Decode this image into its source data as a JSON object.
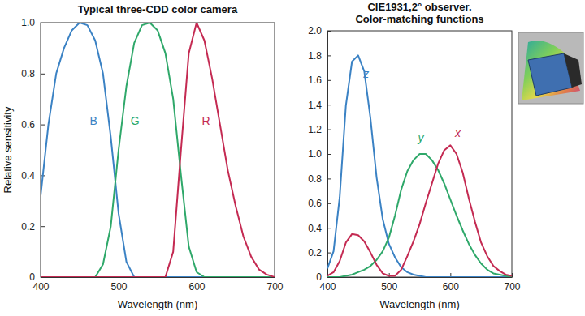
{
  "chart_data": [
    {
      "type": "line",
      "title": "Typical three-CDD color camera",
      "xlabel": "Wavelength (nm)",
      "ylabel": "Relative sensitivity",
      "x": [
        400,
        410,
        420,
        430,
        440,
        450,
        460,
        470,
        480,
        490,
        500,
        510,
        520,
        530,
        540,
        550,
        560,
        570,
        580,
        590,
        600,
        610,
        620,
        630,
        640,
        650,
        660,
        670,
        680,
        690,
        700
      ],
      "series": [
        {
          "name": "B",
          "color": "#3b82c4",
          "values": [
            0.32,
            0.6,
            0.8,
            0.9,
            0.97,
            1.0,
            0.99,
            0.93,
            0.8,
            0.55,
            0.25,
            0.06,
            0,
            0,
            0,
            0,
            0,
            0,
            0,
            0,
            0,
            0,
            0,
            0,
            0,
            0,
            0,
            0,
            0,
            0,
            0
          ]
        },
        {
          "name": "G",
          "color": "#2fa86a",
          "values": [
            0,
            0,
            0,
            0,
            0,
            0,
            0,
            0,
            0.05,
            0.2,
            0.5,
            0.75,
            0.92,
            0.99,
            1.0,
            0.97,
            0.88,
            0.7,
            0.4,
            0.12,
            0.02,
            0,
            0,
            0,
            0,
            0,
            0,
            0,
            0,
            0,
            0
          ]
        },
        {
          "name": "R",
          "color": "#c42a52",
          "values": [
            0,
            0,
            0,
            0,
            0,
            0,
            0,
            0,
            0,
            0,
            0,
            0,
            0,
            0,
            0,
            0,
            0,
            0.1,
            0.5,
            0.88,
            1.0,
            0.93,
            0.78,
            0.6,
            0.42,
            0.28,
            0.16,
            0.08,
            0.03,
            0.01,
            0
          ]
        }
      ],
      "xlim": [
        400,
        700
      ],
      "ylim": [
        0,
        1
      ],
      "xticks": [
        400,
        500,
        600,
        700
      ],
      "yticks": [
        0,
        0.2,
        0.4,
        0.6,
        0.8,
        {
          "value": 1,
          "label": "1.0"
        }
      ],
      "grid": false
    },
    {
      "type": "line",
      "title": [
        "CIE1931,2° observer.",
        "Color-matching functions"
      ],
      "xlabel": "Wavelength (nm)",
      "x": [
        400,
        410,
        420,
        430,
        440,
        450,
        460,
        470,
        480,
        490,
        500,
        510,
        520,
        530,
        540,
        550,
        560,
        570,
        580,
        590,
        600,
        610,
        620,
        630,
        640,
        650,
        660,
        670,
        680,
        690,
        700
      ],
      "series": [
        {
          "name": "z",
          "color": "#3b82c4",
          "values": [
            0.07,
            0.21,
            0.65,
            1.39,
            1.75,
            1.8,
            1.67,
            1.29,
            0.81,
            0.47,
            0.27,
            0.16,
            0.08,
            0.04,
            0.02,
            0.01,
            0,
            0,
            0,
            0,
            0,
            0,
            0,
            0,
            0,
            0,
            0,
            0,
            0,
            0,
            0
          ]
        },
        {
          "name": "y",
          "color": "#2fa86a",
          "values": [
            0,
            0,
            0,
            0.01,
            0.02,
            0.04,
            0.06,
            0.09,
            0.14,
            0.21,
            0.32,
            0.5,
            0.71,
            0.86,
            0.95,
            1.0,
            1.0,
            0.95,
            0.87,
            0.76,
            0.63,
            0.5,
            0.38,
            0.27,
            0.18,
            0.11,
            0.06,
            0.03,
            0.02,
            0.01,
            0
          ]
        },
        {
          "name": "x",
          "color": "#c42a52",
          "values": [
            0.01,
            0.04,
            0.13,
            0.28,
            0.35,
            0.34,
            0.29,
            0.2,
            0.1,
            0.03,
            0.01,
            0.01,
            0.06,
            0.17,
            0.29,
            0.43,
            0.6,
            0.76,
            0.92,
            1.03,
            1.07,
            1.0,
            0.85,
            0.64,
            0.45,
            0.28,
            0.17,
            0.09,
            0.05,
            0.02,
            0.01
          ]
        }
      ],
      "xlim": [
        400,
        700
      ],
      "ylim": [
        0,
        2
      ],
      "xticks": [
        400,
        500,
        600,
        700
      ],
      "yticks": [
        0,
        0.2,
        0.4,
        0.6,
        0.8,
        {
          "value": 1,
          "label": "1.0"
        },
        1.2,
        1.4,
        1.6,
        1.8,
        {
          "value": 2,
          "label": "2.0"
        }
      ],
      "grid": false
    }
  ]
}
